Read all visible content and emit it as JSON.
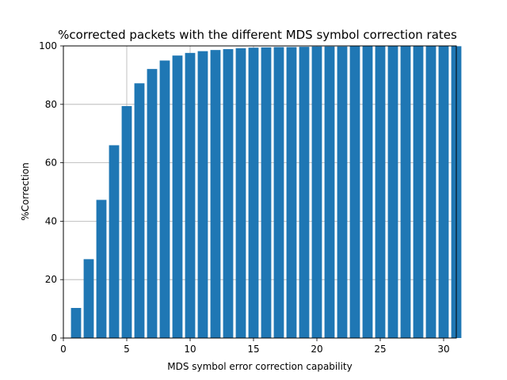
{
  "chart_data": {
    "type": "bar",
    "title": "%corrected packets with the different MDS symbol correction rates",
    "xlabel": "MDS symbol error correction capability",
    "ylabel": "%Correction",
    "x": [
      1,
      2,
      3,
      4,
      5,
      6,
      7,
      8,
      9,
      10,
      11,
      12,
      13,
      14,
      15,
      16,
      17,
      18,
      19,
      20,
      21,
      22,
      23,
      24,
      25,
      26,
      27,
      28,
      29,
      30,
      31
    ],
    "values": [
      10.3,
      27.0,
      47.3,
      66.0,
      79.4,
      87.2,
      92.1,
      95.0,
      96.7,
      97.6,
      98.2,
      98.6,
      98.9,
      99.2,
      99.4,
      99.5,
      99.6,
      99.6,
      99.7,
      99.8,
      99.8,
      99.8,
      99.9,
      99.9,
      99.9,
      99.9,
      99.9,
      99.9,
      99.9,
      99.9,
      99.9
    ],
    "xlim": [
      0,
      31
    ],
    "ylim": [
      0,
      100
    ],
    "xticks": [
      0,
      5,
      10,
      15,
      20,
      25,
      30
    ],
    "yticks": [
      0,
      20,
      40,
      60,
      80,
      100
    ],
    "bar_color": "#1f77b4",
    "grid": true,
    "legend": "none"
  }
}
